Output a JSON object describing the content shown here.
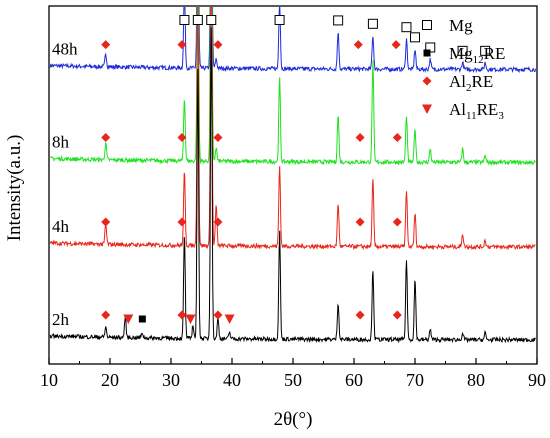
{
  "chart_data": {
    "type": "line",
    "xlabel": "2θ(°)",
    "ylabel": "Intensity(a.u.)",
    "xlim": [
      10,
      90
    ],
    "x_ticks": [
      10,
      20,
      30,
      40,
      50,
      60,
      70,
      80,
      90
    ],
    "y_ticks_shown": false,
    "legend_position": "top-right",
    "legend": [
      {
        "marker": "open-square",
        "color": "#000000",
        "base": "Mg",
        "sub": "",
        "tail": ""
      },
      {
        "marker": "filled-square",
        "color": "#000000",
        "base": "Mg",
        "sub": "12",
        "tail": "RE"
      },
      {
        "marker": "diamond",
        "color": "#e8261c",
        "base": "Al",
        "sub": "2",
        "tail": "RE"
      },
      {
        "marker": "triangle-down",
        "color": "#e8261c",
        "base": "Al",
        "sub": "11",
        "tail": "RE"
      },
      {
        "marker": "",
        "color": "",
        "base": "",
        "sub": "3",
        "tail": ""
      }
    ],
    "series": [
      {
        "name": "48h",
        "color": "#1f2bd8",
        "offset": 0.8,
        "peaks": [
          {
            "x": 19.3,
            "h": 0.04
          },
          {
            "x": 32.2,
            "h": 0.23
          },
          {
            "x": 34.4,
            "h": 0.57
          },
          {
            "x": 36.6,
            "h": 0.67
          },
          {
            "x": 37.4,
            "h": 0.028
          },
          {
            "x": 47.8,
            "h": 0.2
          },
          {
            "x": 57.4,
            "h": 0.11
          },
          {
            "x": 63.1,
            "h": 0.1
          },
          {
            "x": 68.6,
            "h": 0.09
          },
          {
            "x": 70.0,
            "h": 0.06
          },
          {
            "x": 72.5,
            "h": 0.03
          },
          {
            "x": 77.8,
            "h": 0.02
          },
          {
            "x": 81.5,
            "h": 0.02
          }
        ]
      },
      {
        "name": "8h",
        "color": "#1ee21e",
        "offset": 0.525,
        "peaks": [
          {
            "x": 19.3,
            "h": 0.05
          },
          {
            "x": 32.2,
            "h": 0.19
          },
          {
            "x": 34.4,
            "h": 0.7
          },
          {
            "x": 36.6,
            "h": 0.9
          },
          {
            "x": 37.4,
            "h": 0.04
          },
          {
            "x": 47.8,
            "h": 0.25
          },
          {
            "x": 57.4,
            "h": 0.14
          },
          {
            "x": 63.1,
            "h": 0.3
          },
          {
            "x": 68.6,
            "h": 0.14
          },
          {
            "x": 70.0,
            "h": 0.1
          },
          {
            "x": 72.5,
            "h": 0.04
          },
          {
            "x": 77.8,
            "h": 0.04
          },
          {
            "x": 81.5,
            "h": 0.02
          }
        ]
      },
      {
        "name": "4h",
        "color": "#e8261c",
        "offset": 0.275,
        "peaks": [
          {
            "x": 19.3,
            "h": 0.06
          },
          {
            "x": 32.2,
            "h": 0.22
          },
          {
            "x": 34.4,
            "h": 0.75
          },
          {
            "x": 36.6,
            "h": 0.9
          },
          {
            "x": 37.4,
            "h": 0.12
          },
          {
            "x": 47.8,
            "h": 0.24
          },
          {
            "x": 57.4,
            "h": 0.13
          },
          {
            "x": 63.1,
            "h": 0.2
          },
          {
            "x": 68.6,
            "h": 0.17
          },
          {
            "x": 70.0,
            "h": 0.1
          },
          {
            "x": 77.8,
            "h": 0.04
          },
          {
            "x": 81.5,
            "h": 0.02
          }
        ]
      },
      {
        "name": "2h",
        "color": "#000000",
        "offset": 0.0,
        "peaks": [
          {
            "x": 19.3,
            "h": 0.03
          },
          {
            "x": 22.5,
            "h": 0.06
          },
          {
            "x": 25.3,
            "h": 0.015
          },
          {
            "x": 32.2,
            "h": 0.31
          },
          {
            "x": 33.6,
            "h": 0.04
          },
          {
            "x": 34.4,
            "h": 0.8
          },
          {
            "x": 36.6,
            "h": 0.95
          },
          {
            "x": 37.7,
            "h": 0.06
          },
          {
            "x": 39.6,
            "h": 0.02
          },
          {
            "x": 47.8,
            "h": 0.32
          },
          {
            "x": 57.4,
            "h": 0.11
          },
          {
            "x": 63.1,
            "h": 0.21
          },
          {
            "x": 68.6,
            "h": 0.24
          },
          {
            "x": 70.0,
            "h": 0.18
          },
          {
            "x": 72.5,
            "h": 0.03
          },
          {
            "x": 77.8,
            "h": 0.02
          },
          {
            "x": 81.5,
            "h": 0.02
          }
        ]
      }
    ],
    "phase_markers": [
      {
        "series": "48h",
        "type": "open-square",
        "x": 32.2
      },
      {
        "series": "48h",
        "type": "open-square",
        "x": 34.4
      },
      {
        "series": "48h",
        "type": "open-square",
        "x": 36.6
      },
      {
        "series": "48h",
        "type": "open-square",
        "x": 47.8
      },
      {
        "series": "48h",
        "type": "open-square",
        "x": 57.4
      },
      {
        "series": "48h",
        "type": "open-square",
        "x": 63.1
      },
      {
        "series": "48h",
        "type": "open-square",
        "x": 68.6
      },
      {
        "series": "48h",
        "type": "open-square",
        "x": 70.0
      },
      {
        "series": "48h",
        "type": "open-square",
        "x": 72.5
      },
      {
        "series": "48h",
        "type": "open-square",
        "x": 77.8
      },
      {
        "series": "48h",
        "type": "open-square",
        "x": 81.5
      },
      {
        "series": "48h",
        "type": "diamond",
        "x": 19.3
      },
      {
        "series": "48h",
        "type": "diamond",
        "x": 31.8
      },
      {
        "series": "48h",
        "type": "diamond",
        "x": 37.7
      },
      {
        "series": "48h",
        "type": "diamond",
        "x": 60.7
      },
      {
        "series": "48h",
        "type": "diamond",
        "x": 66.9
      },
      {
        "series": "8h",
        "type": "diamond",
        "x": 19.3
      },
      {
        "series": "8h",
        "type": "diamond",
        "x": 31.8
      },
      {
        "series": "8h",
        "type": "diamond",
        "x": 37.7
      },
      {
        "series": "8h",
        "type": "diamond",
        "x": 61.0
      },
      {
        "series": "8h",
        "type": "diamond",
        "x": 67.1
      },
      {
        "series": "4h",
        "type": "diamond",
        "x": 19.3
      },
      {
        "series": "4h",
        "type": "diamond",
        "x": 31.8
      },
      {
        "series": "4h",
        "type": "diamond",
        "x": 37.7
      },
      {
        "series": "4h",
        "type": "diamond",
        "x": 61.0
      },
      {
        "series": "4h",
        "type": "diamond",
        "x": 67.1
      },
      {
        "series": "2h",
        "type": "diamond",
        "x": 19.3
      },
      {
        "series": "2h",
        "type": "diamond",
        "x": 31.8
      },
      {
        "series": "2h",
        "type": "diamond",
        "x": 37.7
      },
      {
        "series": "2h",
        "type": "diamond",
        "x": 61.0
      },
      {
        "series": "2h",
        "type": "diamond",
        "x": 67.1
      },
      {
        "series": "2h",
        "type": "triangle-down",
        "x": 23.0
      },
      {
        "series": "2h",
        "type": "triangle-down",
        "x": 33.2
      },
      {
        "series": "2h",
        "type": "triangle-down",
        "x": 39.6
      },
      {
        "series": "2h",
        "type": "filled-square",
        "x": 25.3
      }
    ]
  }
}
